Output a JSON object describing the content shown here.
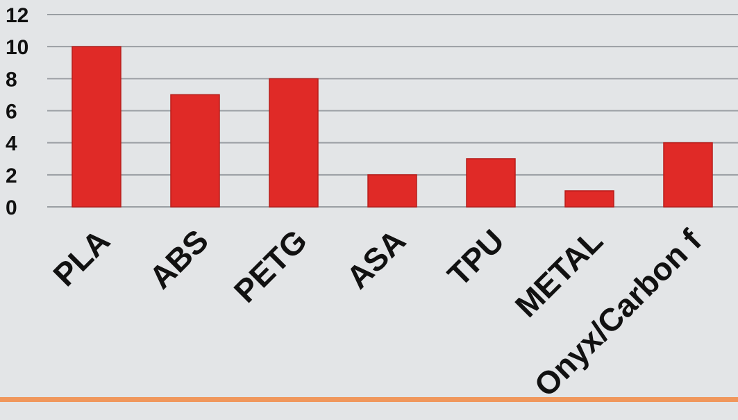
{
  "colors": {
    "background": "#e3e5e7",
    "bar": "#e02a27",
    "bar_edge": "#b81c1a",
    "grid": "#9a9ea3",
    "text": "#111111",
    "accent_rule": "#f0975c"
  },
  "chart_data": {
    "type": "bar",
    "categories": [
      "PLA",
      "ABS",
      "PETG",
      "ASA",
      "TPU",
      "METAL",
      "Onyx/Carbon f"
    ],
    "values": [
      10,
      7,
      8,
      2,
      3,
      1,
      4
    ],
    "title": "",
    "xlabel": "",
    "ylabel": "",
    "ylim": [
      0,
      12
    ],
    "yticks": [
      0,
      2,
      4,
      6,
      8,
      10,
      12
    ],
    "grid": true,
    "legend": "none",
    "category_label_rotation": -45
  }
}
